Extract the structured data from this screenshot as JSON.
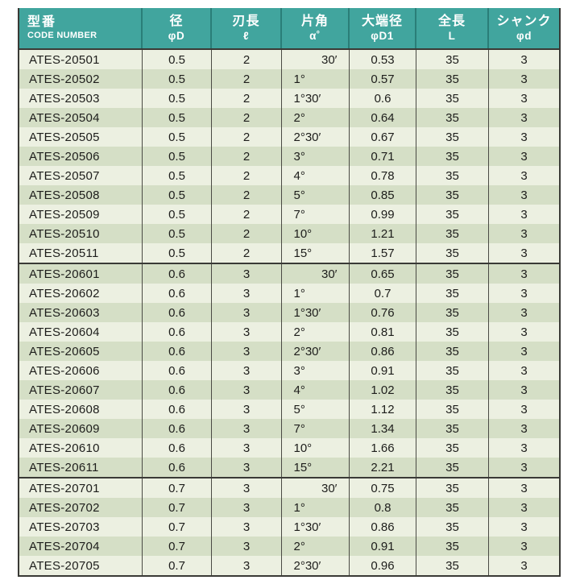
{
  "colors": {
    "header_bg": "#41A59E",
    "header_divider": "#2A7E78",
    "header_text": "#ffffff",
    "row_light": "#ECF0E1",
    "row_dark": "#D5DFC6",
    "body_text": "#1d1d1b",
    "border_dark": "#3a3a36"
  },
  "table": {
    "columns": [
      {
        "jp": "型番",
        "sub": "CODE NUMBER"
      },
      {
        "jp": "径",
        "sub": "φD"
      },
      {
        "jp": "刃長",
        "sub": "ℓ"
      },
      {
        "jp": "片角",
        "sub": "α˚"
      },
      {
        "jp": "大端径",
        "sub": "φD1"
      },
      {
        "jp": "全長",
        "sub": "L"
      },
      {
        "jp": "シャンク",
        "sub": "φd"
      }
    ],
    "rows": [
      [
        "ATES-20501",
        "0.5",
        "2",
        "30′",
        "0.53",
        "35",
        "3"
      ],
      [
        "ATES-20502",
        "0.5",
        "2",
        "1°",
        "0.57",
        "35",
        "3"
      ],
      [
        "ATES-20503",
        "0.5",
        "2",
        "1°30′",
        "0.6",
        "35",
        "3"
      ],
      [
        "ATES-20504",
        "0.5",
        "2",
        "2°",
        "0.64",
        "35",
        "3"
      ],
      [
        "ATES-20505",
        "0.5",
        "2",
        "2°30′",
        "0.67",
        "35",
        "3"
      ],
      [
        "ATES-20506",
        "0.5",
        "2",
        "3°",
        "0.71",
        "35",
        "3"
      ],
      [
        "ATES-20507",
        "0.5",
        "2",
        "4°",
        "0.78",
        "35",
        "3"
      ],
      [
        "ATES-20508",
        "0.5",
        "2",
        "5°",
        "0.85",
        "35",
        "3"
      ],
      [
        "ATES-20509",
        "0.5",
        "2",
        "7°",
        "0.99",
        "35",
        "3"
      ],
      [
        "ATES-20510",
        "0.5",
        "2",
        "10°",
        "1.21",
        "35",
        "3"
      ],
      [
        "ATES-20511",
        "0.5",
        "2",
        "15°",
        "1.57",
        "35",
        "3"
      ],
      [
        "ATES-20601",
        "0.6",
        "3",
        "30′",
        "0.65",
        "35",
        "3"
      ],
      [
        "ATES-20602",
        "0.6",
        "3",
        "1°",
        "0.7",
        "35",
        "3"
      ],
      [
        "ATES-20603",
        "0.6",
        "3",
        "1°30′",
        "0.76",
        "35",
        "3"
      ],
      [
        "ATES-20604",
        "0.6",
        "3",
        "2°",
        "0.81",
        "35",
        "3"
      ],
      [
        "ATES-20605",
        "0.6",
        "3",
        "2°30′",
        "0.86",
        "35",
        "3"
      ],
      [
        "ATES-20606",
        "0.6",
        "3",
        "3°",
        "0.91",
        "35",
        "3"
      ],
      [
        "ATES-20607",
        "0.6",
        "3",
        "4°",
        "1.02",
        "35",
        "3"
      ],
      [
        "ATES-20608",
        "0.6",
        "3",
        "5°",
        "1.12",
        "35",
        "3"
      ],
      [
        "ATES-20609",
        "0.6",
        "3",
        "7°",
        "1.34",
        "35",
        "3"
      ],
      [
        "ATES-20610",
        "0.6",
        "3",
        "10°",
        "1.66",
        "35",
        "3"
      ],
      [
        "ATES-20611",
        "0.6",
        "3",
        "15°",
        "2.21",
        "35",
        "3"
      ],
      [
        "ATES-20701",
        "0.7",
        "3",
        "30′",
        "0.75",
        "35",
        "3"
      ],
      [
        "ATES-20702",
        "0.7",
        "3",
        "1°",
        "0.8",
        "35",
        "3"
      ],
      [
        "ATES-20703",
        "0.7",
        "3",
        "1°30′",
        "0.86",
        "35",
        "3"
      ],
      [
        "ATES-20704",
        "0.7",
        "3",
        "2°",
        "0.91",
        "35",
        "3"
      ],
      [
        "ATES-20705",
        "0.7",
        "3",
        "2°30′",
        "0.96",
        "35",
        "3"
      ]
    ]
  }
}
